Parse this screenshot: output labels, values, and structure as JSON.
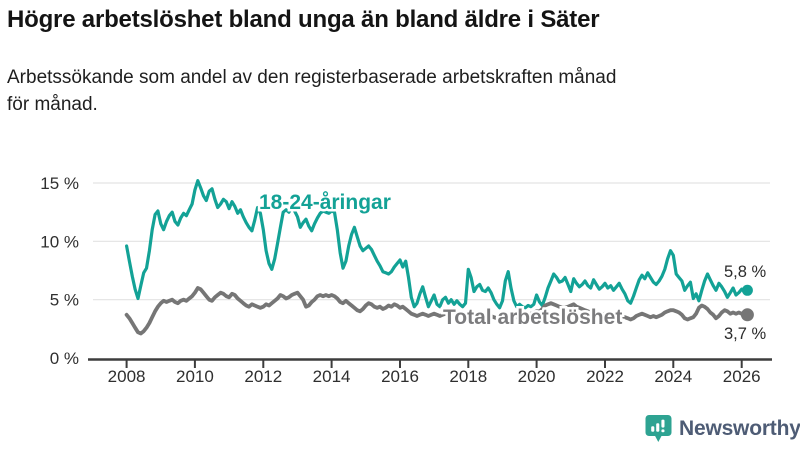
{
  "header": {
    "title": "Högre arbetslöshet bland unga än bland äldre i Säter",
    "subtitle_line1": "Arbetssökande som andel av den registerbaserade arbetskraften månad",
    "subtitle_line2": "för månad."
  },
  "chart_data": {
    "type": "line",
    "title": "Högre arbetslöshet bland unga än bland äldre i Säter",
    "subtitle": "Arbetssökande som andel av den registerbaserade arbetskraften månad för månad.",
    "xlabel": "",
    "ylabel": "%",
    "x_start": 2008.0,
    "x_step_months": 1,
    "x_ticks": [
      2008,
      2010,
      2012,
      2014,
      2016,
      2018,
      2020,
      2022,
      2024,
      2026
    ],
    "ylim": [
      0,
      15.5
    ],
    "grid": "horizontal",
    "legend_position": "inline-annotations",
    "y_ticks": [
      {
        "value": 0,
        "label": "0 %"
      },
      {
        "value": 5,
        "label": "5 %"
      },
      {
        "value": 10,
        "label": "10 %"
      },
      {
        "value": 15,
        "label": "15 %"
      }
    ],
    "series": [
      {
        "name": "18-24-åringar",
        "color": "#13a296",
        "end_label": "5,8 %",
        "end_value": 5.8,
        "values": [
          9.6,
          8.3,
          7.0,
          5.9,
          5.1,
          6.2,
          7.3,
          7.7,
          9.2,
          11.0,
          12.3,
          12.6,
          11.5,
          11.0,
          11.7,
          12.2,
          12.5,
          11.7,
          11.4,
          12.0,
          12.4,
          12.2,
          12.7,
          13.2,
          14.4,
          15.2,
          14.6,
          13.9,
          13.5,
          14.3,
          14.5,
          13.6,
          12.9,
          13.2,
          13.6,
          13.4,
          12.8,
          13.4,
          13.0,
          12.4,
          12.7,
          12.1,
          11.6,
          11.2,
          10.9,
          11.8,
          12.9,
          12.4,
          11.0,
          9.2,
          8.1,
          7.6,
          8.5,
          9.8,
          11.2,
          12.5,
          12.7,
          12.5,
          12.9,
          12.6,
          12.1,
          11.2,
          11.6,
          11.9,
          11.3,
          10.9,
          11.5,
          12.0,
          12.4,
          12.6,
          12.5,
          12.4,
          12.6,
          12.5,
          11.0,
          9.0,
          7.7,
          8.3,
          9.6,
          10.6,
          11.2,
          10.4,
          9.6,
          9.2,
          9.4,
          9.6,
          9.3,
          8.8,
          8.3,
          7.9,
          7.4,
          7.3,
          7.2,
          7.4,
          7.8,
          8.1,
          8.4,
          7.8,
          8.3,
          6.9,
          5.2,
          4.4,
          4.7,
          5.5,
          6.1,
          5.2,
          4.4,
          4.9,
          5.4,
          4.6,
          4.4,
          5.0,
          5.2,
          4.7,
          5.0,
          4.6,
          4.9,
          4.6,
          4.4,
          4.7,
          7.6,
          6.9,
          5.7,
          6.1,
          6.3,
          5.8,
          5.7,
          6.0,
          5.6,
          5.0,
          4.6,
          4.3,
          4.9,
          6.6,
          7.4,
          6.0,
          4.9,
          4.4,
          4.6,
          4.4,
          4.3,
          4.5,
          4.4,
          4.6,
          5.4,
          4.8,
          4.5,
          5.2,
          6.0,
          6.6,
          7.2,
          6.9,
          6.5,
          6.6,
          6.9,
          6.3,
          5.7,
          6.8,
          6.4,
          6.1,
          6.3,
          6.6,
          6.2,
          6.0,
          6.7,
          6.3,
          5.9,
          6.1,
          6.4,
          6.0,
          6.2,
          5.8,
          6.1,
          6.4,
          5.9,
          5.5,
          4.9,
          4.7,
          5.3,
          6.0,
          6.7,
          7.1,
          6.8,
          7.3,
          6.9,
          6.5,
          6.3,
          6.6,
          7.0,
          7.6,
          8.5,
          9.2,
          8.8,
          7.2,
          6.9,
          6.6,
          5.8,
          6.2,
          6.5,
          5.1,
          5.5,
          4.9,
          5.8,
          6.6,
          7.2,
          6.7,
          6.2,
          5.8,
          6.4,
          6.1,
          5.7,
          5.2,
          5.6,
          6.0,
          5.4,
          5.6,
          5.9,
          5.7,
          5.8
        ]
      },
      {
        "name": "Total arbetslöshet",
        "color": "#767676",
        "end_label": "3,7 %",
        "end_value": 3.7,
        "values": [
          3.7,
          3.4,
          3.0,
          2.6,
          2.2,
          2.1,
          2.3,
          2.6,
          3.0,
          3.5,
          4.0,
          4.4,
          4.7,
          4.9,
          4.8,
          4.9,
          5.0,
          4.8,
          4.7,
          4.9,
          5.0,
          4.9,
          5.1,
          5.3,
          5.6,
          6.0,
          5.9,
          5.6,
          5.3,
          5.0,
          4.9,
          5.2,
          5.4,
          5.6,
          5.5,
          5.3,
          5.2,
          5.5,
          5.4,
          5.1,
          4.9,
          4.7,
          4.5,
          4.4,
          4.6,
          4.5,
          4.4,
          4.3,
          4.4,
          4.6,
          4.5,
          4.7,
          4.9,
          5.1,
          5.4,
          5.3,
          5.1,
          5.2,
          5.4,
          5.5,
          5.6,
          5.3,
          5.0,
          4.4,
          4.5,
          4.8,
          5.0,
          5.3,
          5.4,
          5.3,
          5.4,
          5.3,
          5.4,
          5.3,
          5.1,
          4.8,
          4.7,
          4.9,
          4.7,
          4.5,
          4.3,
          4.1,
          4.0,
          4.2,
          4.5,
          4.7,
          4.6,
          4.4,
          4.3,
          4.4,
          4.2,
          4.3,
          4.5,
          4.4,
          4.6,
          4.5,
          4.3,
          4.4,
          4.2,
          4.0,
          3.8,
          3.7,
          3.6,
          3.7,
          3.8,
          3.7,
          3.6,
          3.7,
          3.8,
          3.7,
          3.6,
          3.7,
          3.8,
          3.7,
          3.6,
          3.5,
          3.6,
          3.7,
          3.6,
          3.7,
          3.9,
          4.0,
          3.8,
          3.7,
          3.8,
          3.7,
          3.6,
          3.7,
          3.6,
          3.5,
          3.4,
          3.5,
          3.7,
          3.9,
          3.8,
          3.7,
          3.6,
          3.5,
          3.6,
          3.5,
          3.6,
          3.7,
          3.8,
          3.9,
          4.0,
          4.0,
          4.2,
          4.5,
          4.6,
          4.7,
          4.6,
          4.5,
          4.4,
          4.3,
          4.3,
          4.4,
          4.5,
          4.6,
          4.4,
          4.3,
          4.2,
          4.1,
          4.0,
          3.9,
          3.8,
          3.7,
          3.6,
          3.7,
          3.8,
          3.7,
          3.6,
          3.5,
          3.4,
          3.5,
          3.6,
          3.5,
          3.4,
          3.3,
          3.4,
          3.6,
          3.7,
          3.8,
          3.7,
          3.6,
          3.5,
          3.6,
          3.5,
          3.6,
          3.7,
          3.9,
          4.0,
          4.1,
          4.1,
          4.0,
          3.9,
          3.7,
          3.4,
          3.3,
          3.4,
          3.5,
          3.8,
          4.3,
          4.5,
          4.4,
          4.2,
          3.9,
          3.7,
          3.4,
          3.6,
          3.9,
          4.1,
          4.0,
          3.8,
          3.9,
          3.8,
          3.9,
          3.8,
          3.8,
          3.7
        ]
      }
    ]
  },
  "branding": {
    "logo_text": "Newsworthy"
  },
  "colors": {
    "accent_teal": "#13a296",
    "series_gray": "#767676",
    "logo_icon_teal": "#2ea392",
    "logo_text_blue": "#4e5c75"
  }
}
